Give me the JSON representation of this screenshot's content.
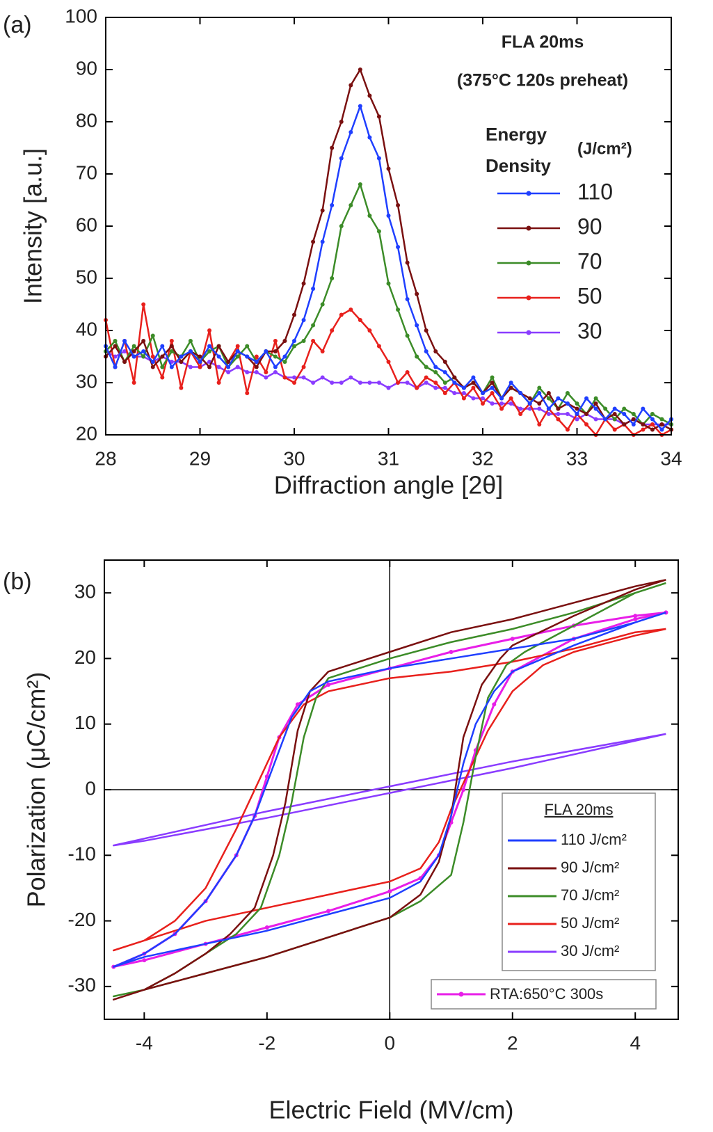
{
  "chart_data": [
    {
      "type": "line",
      "panel_label": "(a)",
      "x_label": "Diffraction angle [2θ]",
      "y_label": "Intensity [a.u.]",
      "annotations": [
        "FLA 20ms",
        "(375°C 120s preheat)"
      ],
      "legend_title": [
        "Energy",
        "Density"
      ],
      "legend_unit": "(J/cm²)",
      "xlim": [
        28,
        34
      ],
      "ylim": [
        20,
        100
      ],
      "xticks": [
        28,
        29,
        30,
        31,
        32,
        33,
        34
      ],
      "yticks": [
        20,
        30,
        40,
        50,
        60,
        70,
        80,
        90,
        100
      ],
      "markers": true,
      "x": [
        28,
        28.1,
        28.2,
        28.3,
        28.4,
        28.5,
        28.6,
        28.7,
        28.8,
        28.9,
        29,
        29.1,
        29.2,
        29.3,
        29.4,
        29.5,
        29.6,
        29.7,
        29.8,
        29.9,
        30,
        30.1,
        30.2,
        30.3,
        30.4,
        30.5,
        30.6,
        30.7,
        30.8,
        30.9,
        31,
        31.1,
        31.2,
        31.3,
        31.4,
        31.5,
        31.6,
        31.7,
        31.8,
        31.9,
        32,
        32.1,
        32.2,
        32.3,
        32.4,
        32.5,
        32.6,
        32.7,
        32.8,
        32.9,
        33,
        33.1,
        33.2,
        33.3,
        33.4,
        33.5,
        33.6,
        33.7,
        33.8,
        33.9,
        34
      ],
      "series": [
        {
          "name": "110",
          "color": "#1f3fff",
          "values": [
            37,
            33,
            38,
            35,
            36,
            34,
            37,
            33,
            35,
            36,
            34,
            37,
            35,
            33,
            36,
            35,
            34,
            36,
            33,
            35,
            38,
            42,
            48,
            57,
            64,
            73,
            78,
            83,
            77,
            73,
            62,
            56,
            46,
            41,
            36,
            33,
            32,
            30,
            29,
            31,
            28,
            29,
            27,
            30,
            28,
            26,
            28,
            25,
            27,
            26,
            24,
            27,
            25,
            23,
            25,
            24,
            22,
            25,
            23,
            21,
            23
          ]
        },
        {
          "name": "90",
          "color": "#7a1010",
          "values": [
            35,
            37,
            34,
            36,
            38,
            33,
            35,
            37,
            34,
            36,
            35,
            33,
            37,
            34,
            36,
            35,
            33,
            36,
            36,
            38,
            43,
            49,
            57,
            63,
            75,
            80,
            87,
            90,
            85,
            81,
            71,
            64,
            53,
            47,
            40,
            36,
            34,
            31,
            29,
            30,
            28,
            30,
            27,
            29,
            28,
            27,
            26,
            28,
            25,
            26,
            25,
            24,
            26,
            23,
            24,
            22,
            23,
            22,
            21,
            22,
            21
          ]
        },
        {
          "name": "70",
          "color": "#3c8c28",
          "values": [
            36,
            38,
            34,
            37,
            35,
            39,
            33,
            36,
            35,
            38,
            34,
            36,
            37,
            33,
            35,
            37,
            34,
            36,
            35,
            34,
            37,
            38,
            41,
            45,
            50,
            60,
            64,
            68,
            62,
            59,
            49,
            44,
            39,
            35,
            33,
            32,
            30,
            31,
            29,
            30,
            28,
            31,
            27,
            29,
            28,
            26,
            29,
            27,
            25,
            28,
            26,
            24,
            27,
            25,
            23,
            25,
            24,
            22,
            24,
            23,
            22
          ]
        },
        {
          "name": "50",
          "color": "#e8201c",
          "values": [
            42,
            33,
            38,
            30,
            45,
            35,
            31,
            38,
            29,
            36,
            33,
            40,
            30,
            34,
            37,
            28,
            35,
            32,
            38,
            31,
            30,
            33,
            38,
            36,
            40,
            43,
            44,
            42,
            40,
            37,
            34,
            30,
            32,
            29,
            31,
            30,
            28,
            30,
            27,
            29,
            26,
            28,
            25,
            27,
            24,
            26,
            22,
            25,
            23,
            21,
            24,
            22,
            20,
            23,
            21,
            22,
            20,
            21,
            22,
            20,
            21
          ]
        },
        {
          "name": "30",
          "color": "#8a3cff",
          "values": [
            36,
            35,
            36,
            35,
            35,
            34,
            35,
            34,
            34,
            33,
            33,
            34,
            33,
            32,
            33,
            32,
            32,
            31,
            32,
            31,
            31,
            31,
            30,
            31,
            30,
            30,
            31,
            30,
            30,
            30,
            29,
            30,
            30,
            29,
            30,
            29,
            29,
            28,
            28,
            27,
            27,
            26,
            26,
            26,
            25,
            25,
            25,
            24,
            24,
            24,
            23,
            24,
            23,
            23,
            23,
            22,
            23,
            22,
            22,
            22,
            22
          ]
        }
      ]
    },
    {
      "type": "line",
      "panel_label": "(b)",
      "x_label": "Electric Field (MV/cm)",
      "y_label": "Polarization (μC/cm²)",
      "legend_title": "FLA 20ms",
      "xlim": [
        -4.65,
        4.7
      ],
      "ylim": [
        -35,
        35
      ],
      "xticks": [
        -4,
        -2,
        0,
        2,
        4
      ],
      "yticks": [
        -30,
        -20,
        -10,
        0,
        10,
        20,
        30
      ],
      "zero_lines": true,
      "series": [
        {
          "name": "110 J/cm²",
          "color": "#1f3fff",
          "x": [
            4.5,
            4,
            3,
            2,
            1,
            0,
            -1,
            -1.3,
            -1.6,
            -1.8,
            -2,
            -2.2,
            -2.5,
            -3,
            -3.5,
            -4,
            -4.5,
            -4,
            -3,
            -2,
            -1,
            0,
            0.5,
            0.8,
            1,
            1.2,
            1.4,
            1.7,
            2,
            3,
            4,
            4.5
          ],
          "values": [
            27,
            25.5,
            23,
            21.5,
            20,
            18.5,
            16.5,
            15,
            11,
            6,
            1,
            -4,
            -10,
            -17,
            -22,
            -25,
            -27,
            -25.5,
            -23.5,
            -21.5,
            -19,
            -16.5,
            -14,
            -10,
            -4,
            4,
            10,
            15,
            18,
            22,
            25.5,
            27
          ]
        },
        {
          "name": "90 J/cm²",
          "color": "#7a1010",
          "x": [
            4.5,
            4,
            3,
            2,
            1,
            0,
            -1,
            -1.3,
            -1.5,
            -1.7,
            -1.9,
            -2.2,
            -2.6,
            -3,
            -3.5,
            -4,
            -4.5,
            -4,
            -3,
            -2,
            -1,
            0,
            0.5,
            0.8,
            1,
            1.2,
            1.5,
            1.8,
            2,
            3,
            4,
            4.5
          ],
          "values": [
            32,
            31,
            28.5,
            26,
            24,
            21,
            18,
            15,
            9,
            -2,
            -10,
            -18,
            -22,
            -25,
            -28,
            -30.5,
            -32,
            -30.5,
            -28,
            -25.5,
            -22.5,
            -19.5,
            -16,
            -11,
            -4,
            8,
            16,
            20,
            22,
            26.5,
            30.5,
            32
          ]
        },
        {
          "name": "70 J/cm²",
          "color": "#3c8c28",
          "x": [
            4.5,
            4,
            3,
            2,
            1,
            0,
            -1,
            -1.2,
            -1.4,
            -1.6,
            -1.8,
            -2.1,
            -2.5,
            -3,
            -3.5,
            -4,
            -4.5,
            -4,
            -3,
            -2,
            -1,
            0,
            0.5,
            1,
            1.2,
            1.4,
            1.6,
            1.9,
            2.2,
            3,
            4,
            4.5
          ],
          "values": [
            31.5,
            30,
            27,
            24.5,
            22.5,
            20,
            17,
            14,
            8,
            -2,
            -10,
            -18,
            -22,
            -25,
            -28,
            -30.5,
            -31.5,
            -30.5,
            -28,
            -25.5,
            -22.5,
            -19.5,
            -17,
            -13,
            -5,
            5,
            14,
            19,
            21,
            25,
            30,
            31.5
          ]
        },
        {
          "name": "50 J/cm²",
          "color": "#e8201c",
          "x": [
            4.5,
            4,
            3,
            2,
            1,
            0,
            -1,
            -1.4,
            -1.8,
            -2.2,
            -2.5,
            -3,
            -3.5,
            -4,
            -4.5,
            -4,
            -3,
            -2,
            -1,
            0,
            0.5,
            0.8,
            1,
            1.3,
            1.6,
            2,
            2.5,
            3,
            4,
            4.5
          ],
          "values": [
            24.5,
            24,
            21.5,
            19.5,
            18,
            17,
            15,
            13,
            8,
            0,
            -6,
            -15,
            -20,
            -23,
            -24.5,
            -23,
            -20,
            -18,
            -16,
            -14,
            -12,
            -8,
            -3,
            3,
            9,
            15,
            19,
            21,
            23.5,
            24.5
          ]
        },
        {
          "name": "30 J/cm²",
          "color": "#8a3cff",
          "x": [
            4.5,
            2,
            0,
            -2,
            -4.5,
            -4,
            -2,
            0,
            2,
            4.5
          ],
          "values": [
            8.5,
            4.3,
            0.5,
            -3.3,
            -8.5,
            -7.8,
            -4.3,
            -0.5,
            3.3,
            8.5
          ]
        },
        {
          "name": "RTA:650°C 300s",
          "color": "#e81ee8",
          "markers": true,
          "x": [
            4.5,
            4,
            3,
            2,
            1,
            0,
            -1,
            -1.5,
            -1.8,
            -2,
            -2.2,
            -2.5,
            -3,
            -3.5,
            -4,
            -4.5,
            -4,
            -3,
            -2,
            -1,
            0,
            0.5,
            0.8,
            1,
            1.2,
            1.4,
            1.7,
            2,
            3,
            4,
            4.5
          ],
          "values": [
            27,
            26.5,
            25,
            23,
            21,
            18.5,
            16,
            13,
            8,
            2,
            -4,
            -10,
            -17,
            -22,
            -25,
            -27,
            -26,
            -23.5,
            -21,
            -18.5,
            -15.5,
            -13.5,
            -10,
            -5,
            0,
            6,
            13,
            18,
            23,
            26,
            27
          ]
        }
      ]
    }
  ]
}
